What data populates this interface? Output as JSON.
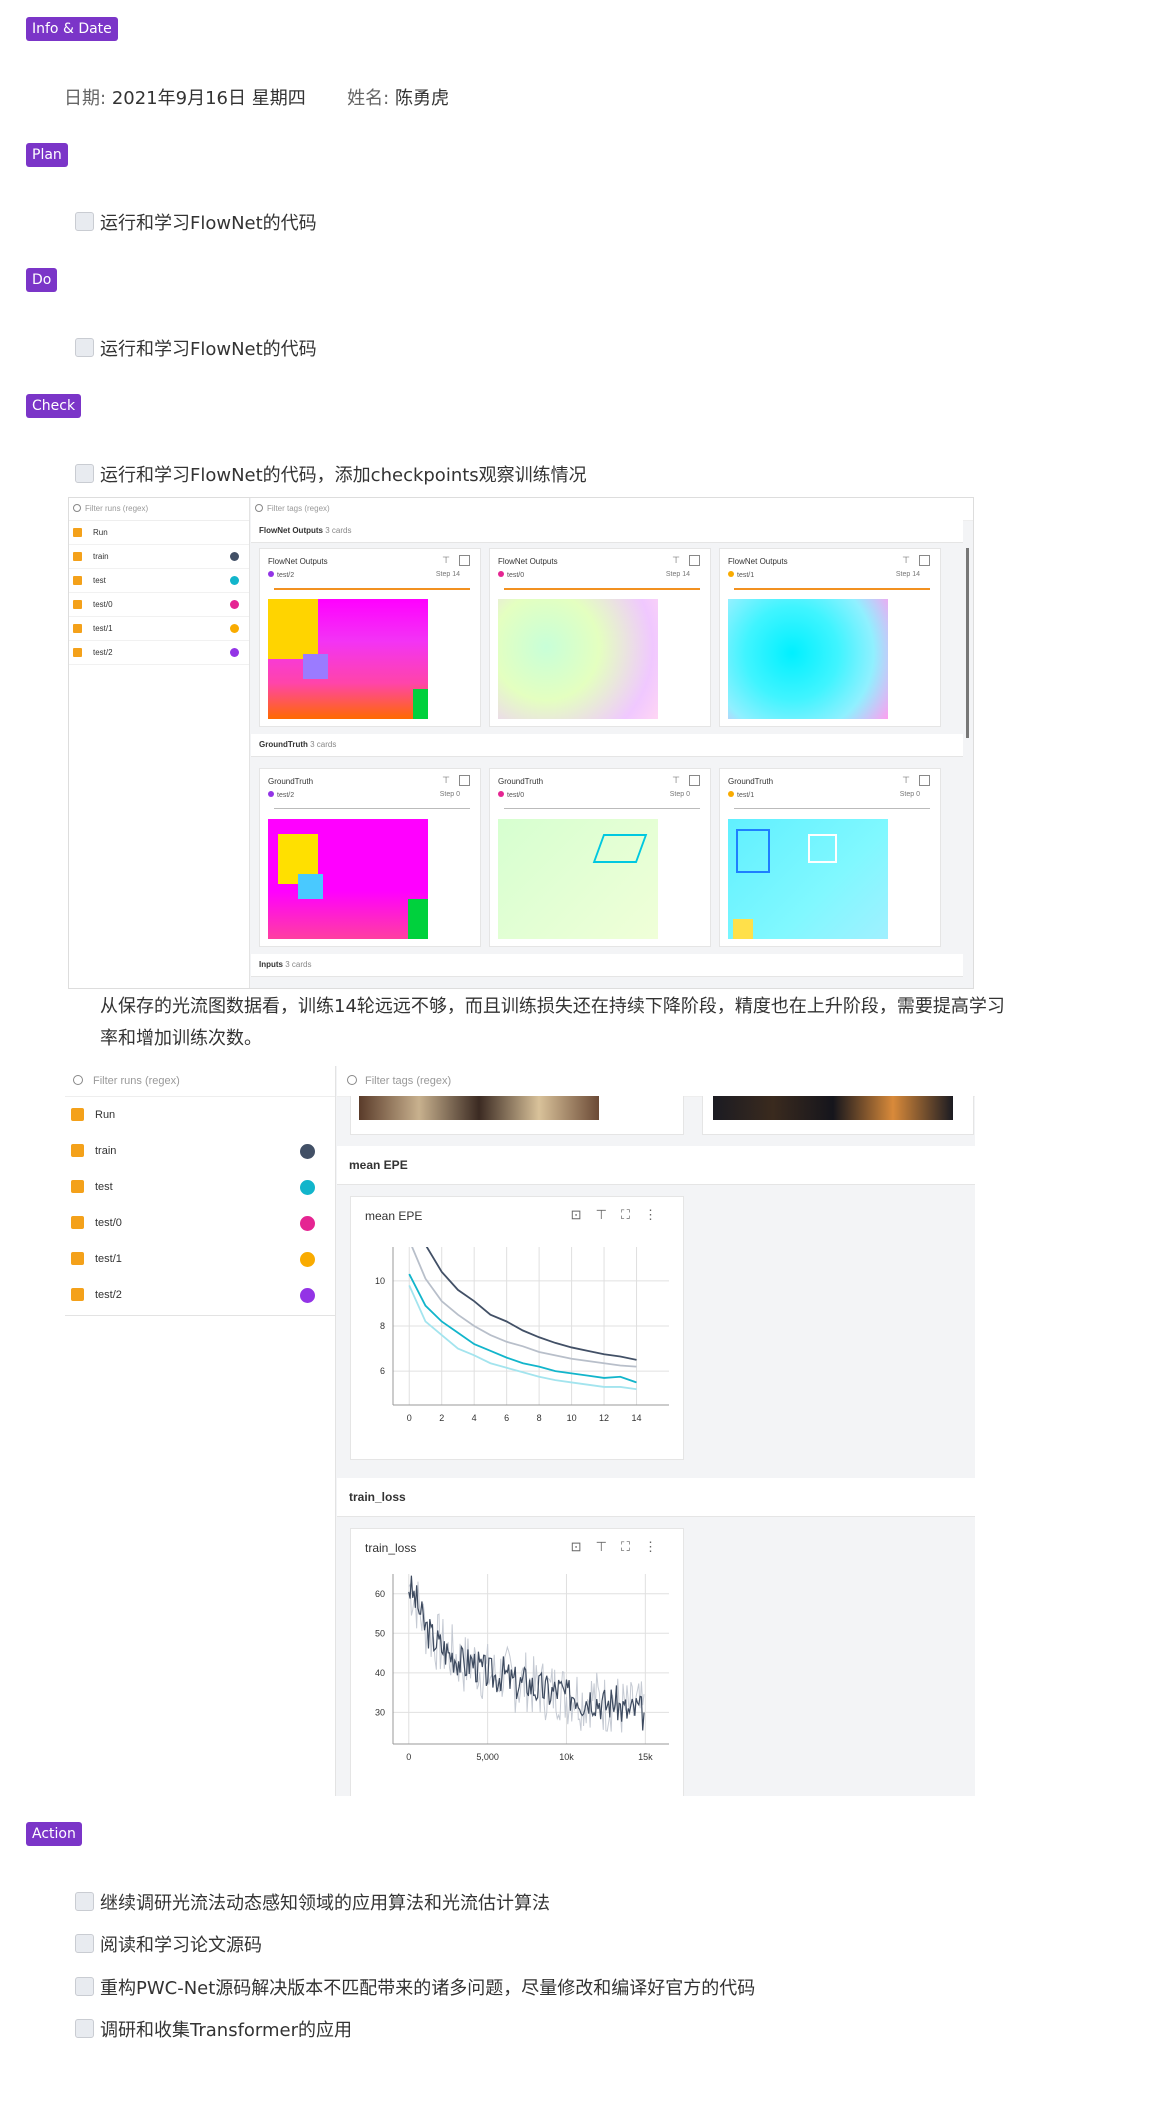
{
  "sections": {
    "info": "Info & Date",
    "plan": "Plan",
    "do": "Do",
    "check": "Check",
    "action": "Action"
  },
  "info": {
    "date_label": "日期:",
    "date_value": "2021年9月16日 星期四",
    "name_label": "姓名:",
    "name_value": "陈勇虎"
  },
  "plan_items": [
    "运行和学习FlowNet的代码"
  ],
  "do_items": [
    "运行和学习FlowNet的代码"
  ],
  "check_items": [
    "运行和学习FlowNet的代码，添加checkpoints观察训练情况"
  ],
  "check_paragraph": "从保存的光流图数据看，训练14轮远远不够，而且训练损失还在持续下降阶段，精度也在上升阶段，需要提高学习率和增加训练次数。",
  "action_items": [
    "继续调研光流法动态感知领域的应用算法和光流估计算法",
    "阅读和学习论文源码",
    "重构PWC-Net源码解决版本不匹配带来的诸多问题，尽量修改和编译好官方的代码",
    "调研和收集Transformer的应用"
  ],
  "tb1": {
    "filter_runs": "Filter runs (regex)",
    "filter_tags": "Filter tags (regex)",
    "runs": [
      {
        "label": "Run",
        "color": ""
      },
      {
        "label": "train",
        "color": "#425066"
      },
      {
        "label": "test",
        "color": "#12b5cb"
      },
      {
        "label": "test/0",
        "color": "#e52592"
      },
      {
        "label": "test/1",
        "color": "#f9ab00"
      },
      {
        "label": "test/2",
        "color": "#9334e6"
      }
    ],
    "section1": {
      "title": "FlowNet Outputs",
      "count": "3 cards"
    },
    "section2": {
      "title": "GroundTruth",
      "count": "3 cards"
    },
    "section3": {
      "title": "Inputs",
      "count": "3 cards"
    },
    "cards1": [
      {
        "title": "FlowNet Outputs",
        "run": "test/2",
        "step": "Step 14",
        "color": "#9334e6"
      },
      {
        "title": "FlowNet Outputs",
        "run": "test/0",
        "step": "Step 14",
        "color": "#e52592"
      },
      {
        "title": "FlowNet Outputs",
        "run": "test/1",
        "step": "Step 14",
        "color": "#f9ab00"
      }
    ],
    "cards2": [
      {
        "title": "GroundTruth",
        "run": "test/2",
        "step": "Step 0",
        "color": "#9334e6"
      },
      {
        "title": "GroundTruth",
        "run": "test/0",
        "step": "Step 0",
        "color": "#e52592"
      },
      {
        "title": "GroundTruth",
        "run": "test/1",
        "step": "Step 0",
        "color": "#f9ab00"
      }
    ]
  },
  "tb2": {
    "filter_runs": "Filter runs (regex)",
    "filter_tags": "Filter tags (regex)",
    "runs": [
      {
        "label": "Run",
        "color": ""
      },
      {
        "label": "train",
        "color": "#425066"
      },
      {
        "label": "test",
        "color": "#12b5cb"
      },
      {
        "label": "test/0",
        "color": "#e52592"
      },
      {
        "label": "test/1",
        "color": "#f9ab00"
      },
      {
        "label": "test/2",
        "color": "#9334e6"
      }
    ],
    "section_epe": "mean EPE",
    "section_loss": "train_loss"
  },
  "chart_data": [
    {
      "type": "line",
      "title": "mean EPE",
      "xlabel": "",
      "ylabel": "",
      "xlim": [
        -1,
        16
      ],
      "ylim": [
        4.5,
        11.5
      ],
      "x_ticks": [
        "0",
        "2",
        "4",
        "6",
        "8",
        "10",
        "12",
        "14"
      ],
      "y_ticks": [
        "6",
        "8",
        "10"
      ],
      "grid": true,
      "series": [
        {
          "color": "#425066",
          "x": [
            0,
            1,
            2,
            3,
            4,
            5,
            6,
            7,
            8,
            9,
            10,
            11,
            12,
            13,
            14
          ],
          "values": [
            13.5,
            11.6,
            10.4,
            9.6,
            9.1,
            8.5,
            8.2,
            7.8,
            7.5,
            7.25,
            7.05,
            6.9,
            6.75,
            6.65,
            6.5
          ]
        },
        {
          "color": "#b8bfca",
          "x": [
            0,
            1,
            2,
            3,
            4,
            5,
            6,
            7,
            8,
            9,
            10,
            11,
            12,
            13,
            14
          ],
          "values": [
            11.8,
            10.1,
            9.1,
            8.5,
            8.0,
            7.6,
            7.3,
            7.1,
            6.85,
            6.7,
            6.55,
            6.45,
            6.35,
            6.25,
            6.2
          ]
        },
        {
          "color": "#12b5cb",
          "x": [
            0,
            1,
            2,
            3,
            4,
            5,
            6,
            7,
            8,
            9,
            10,
            11,
            12,
            13,
            14
          ],
          "values": [
            10.3,
            8.9,
            8.2,
            7.7,
            7.2,
            6.9,
            6.6,
            6.35,
            6.2,
            6.0,
            5.9,
            5.8,
            5.7,
            5.75,
            5.5
          ]
        },
        {
          "color": "#a3e4ee",
          "x": [
            0,
            1,
            2,
            3,
            4,
            5,
            6,
            7,
            8,
            9,
            10,
            11,
            12,
            13,
            14
          ],
          "values": [
            9.8,
            8.2,
            7.6,
            7.0,
            6.7,
            6.35,
            6.15,
            5.95,
            5.75,
            5.6,
            5.5,
            5.4,
            5.3,
            5.3,
            5.2
          ]
        }
      ]
    },
    {
      "type": "line",
      "title": "train_loss",
      "xlabel": "",
      "ylabel": "",
      "xlim": [
        -1000,
        16500
      ],
      "ylim": [
        22,
        65
      ],
      "x_ticks": [
        "0",
        "5,000",
        "10k",
        "15k"
      ],
      "y_ticks": [
        "30",
        "40",
        "50",
        "60"
      ],
      "grid": true,
      "series": [
        {
          "color": "#3d4a5f",
          "x": [
            0,
            500,
            1000,
            1500,
            2000,
            2500,
            3000,
            3500,
            4000,
            4500,
            5000,
            5500,
            6000,
            6500,
            7000,
            7500,
            8000,
            8500,
            9000,
            9500,
            10000,
            10500,
            11000,
            11500,
            12000,
            12500,
            13000,
            13500,
            14000,
            14500,
            15000
          ],
          "values": [
            62,
            58,
            52,
            49,
            47,
            45,
            44,
            42,
            43,
            41,
            40,
            39,
            40,
            38,
            37,
            38,
            36,
            36,
            35,
            36,
            34,
            35,
            33,
            34,
            33,
            32,
            33,
            31,
            30,
            31,
            29
          ]
        }
      ]
    }
  ]
}
